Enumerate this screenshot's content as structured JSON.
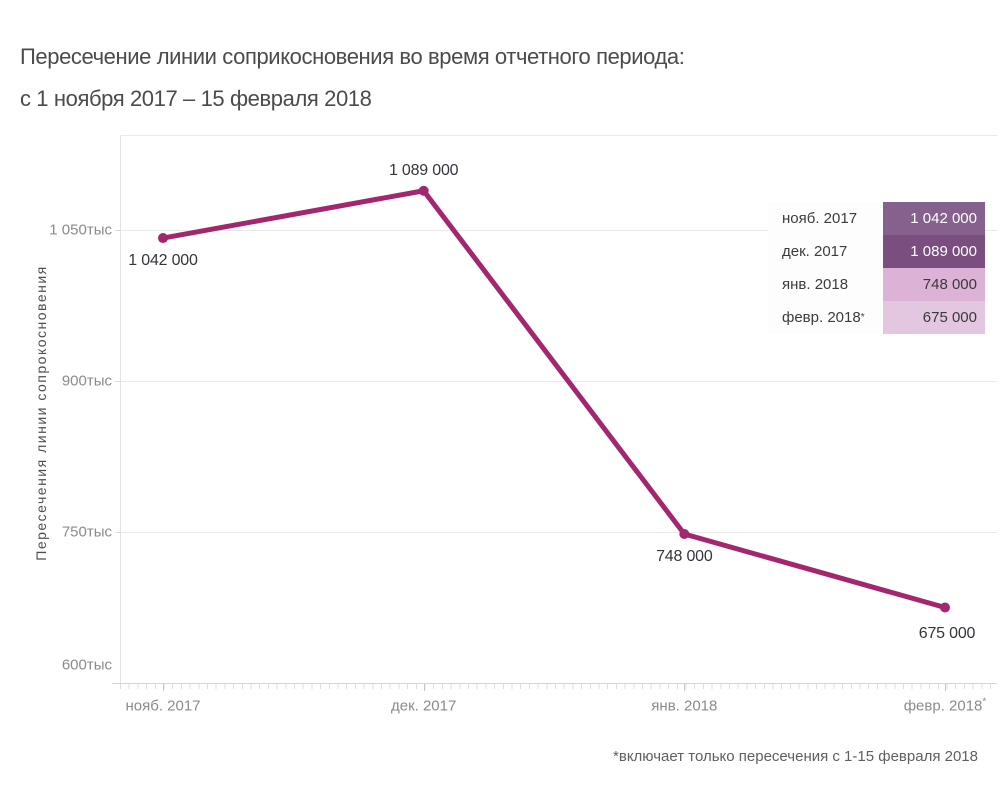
{
  "title": {
    "line1": "Пересечение линии соприкосновения во время отчетного периода:",
    "line2": "с 1 ноября 2017 – 15 февраля 2018"
  },
  "chart_data": {
    "type": "line",
    "categories": [
      "нояб. 2017",
      "дек. 2017",
      "янв. 2018",
      "февр. 2018*"
    ],
    "values": [
      1042000,
      1089000,
      748000,
      675000
    ],
    "value_labels": [
      "1 042 000",
      "1 089 000",
      "748 000",
      "675 000"
    ],
    "title": "Пересечение линии соприкосновения во время отчетного периода: с 1 ноября 2017 – 15 февраля 2018",
    "xlabel": "",
    "ylabel": "Пересечения линии сопрокосновения",
    "y_ticks": [
      {
        "label": "600тыс",
        "value": 600000
      },
      {
        "label": "750тыс",
        "value": 750000
      },
      {
        "label": "900тыс",
        "value": 900000
      },
      {
        "label": "1 050тыс",
        "value": 1050000
      }
    ],
    "ylim": [
      600000,
      1144000
    ],
    "grid": true,
    "line_color": "#a2276f",
    "marker": "circle",
    "legend_position": "top-right"
  },
  "legend": {
    "rows": [
      {
        "label": "нояб. 2017",
        "value": "1 042 000",
        "bg": "#86618e",
        "text_color": "#ffffff"
      },
      {
        "label": "дек. 2017",
        "value": "1 089 000",
        "bg": "#7a4f80",
        "text_color": "#ffffff"
      },
      {
        "label": "янв. 2018",
        "value": "748 000",
        "bg": "#dcb3d6",
        "text_color": "#3a3a3a"
      },
      {
        "label": "февр. 2018*",
        "value": "675 000",
        "bg": "#e3c6e0",
        "text_color": "#3a3a3a"
      }
    ]
  },
  "footnote": "*включает только пересечения с 1-15 февраля 2018"
}
